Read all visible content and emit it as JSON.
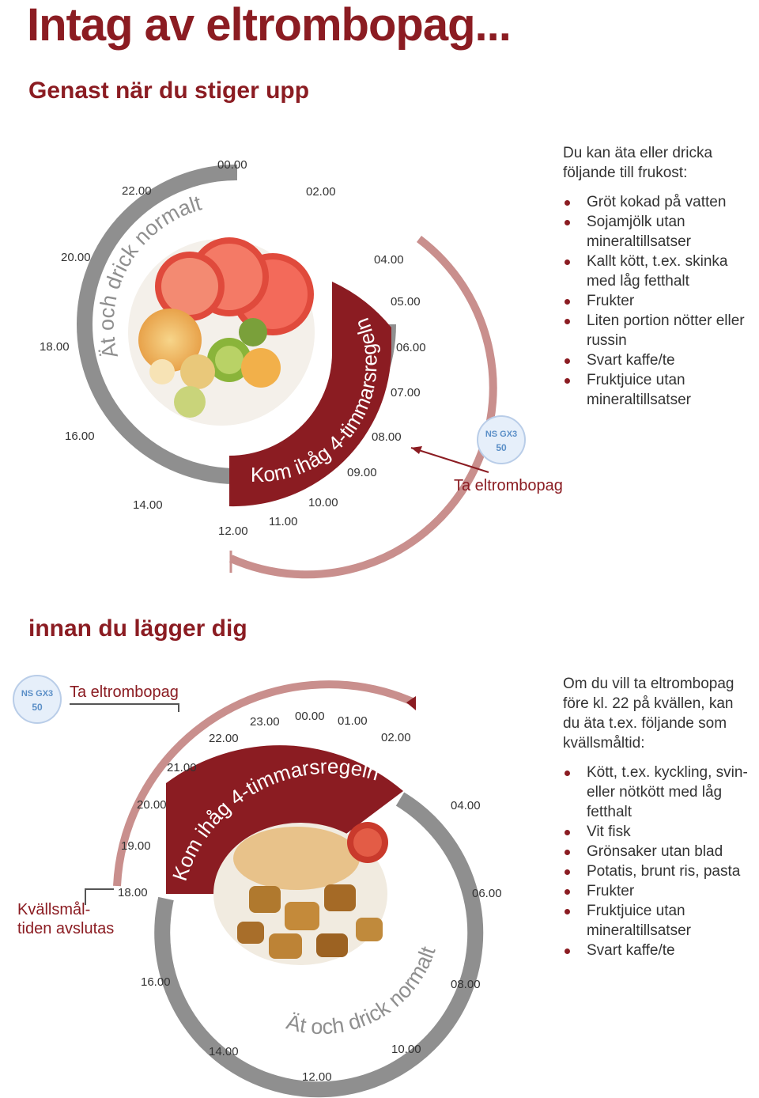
{
  "title": "Intag av eltrombopag...",
  "morning": {
    "heading": "Genast när du stiger upp",
    "eat_label": "Ät och drick normalt",
    "rule_label": "Kom ihåg 4-timmarsregeln",
    "take_label": "Ta eltrombopag",
    "pill": {
      "line1": "NS GX3",
      "line2": "50"
    },
    "times": [
      "00.00",
      "02.00",
      "04.00",
      "05.00",
      "06.00",
      "07.00",
      "08.00",
      "09.00",
      "10.00",
      "11.00",
      "12.00",
      "14.00",
      "16.00",
      "18.00",
      "20.00",
      "22.00"
    ],
    "info_intro": "Du kan äta eller dricka följande till frukost:",
    "info_items": [
      "Gröt kokad på vatten",
      "Sojamjölk utan mineraltillsatser",
      "Kallt kött, t.ex. skinka med låg fetthalt",
      "Frukter",
      "Liten portion nötter eller russin",
      "Svart kaffe/te",
      "Fruktjuice utan mineraltillsatser"
    ]
  },
  "evening": {
    "heading": "innan du lägger dig",
    "eat_label": "Ät och drick normalt",
    "rule_label": "Kom ihåg 4-timmarsregeln",
    "take_label": "Ta eltrombopag",
    "meal_end_line1": "Kvällsmål-",
    "meal_end_line2": "tiden avslutas",
    "pill": {
      "line1": "NS GX3",
      "line2": "50"
    },
    "times": [
      "23.00",
      "00.00",
      "01.00",
      "02.00",
      "22.00",
      "21.00",
      "20.00",
      "19.00",
      "18.00",
      "04.00",
      "06.00",
      "08.00",
      "10.00",
      "12.00",
      "14.00",
      "16.00"
    ],
    "info_intro": "Om du vill ta eltrombopag före kl. 22 på kvällen, kan du äta t.ex. följande som kvällsmåltid:",
    "info_items": [
      "Kött, t.ex. kyckling, svin- eller nötkött med låg fetthalt",
      "Vit fisk",
      "Grönsaker utan blad",
      "Potatis, brunt ris, pasta",
      "Frukter",
      "Fruktjuice utan mineraltillsatser",
      "Svart kaffe/te"
    ]
  },
  "colors": {
    "dark_red": "#8b1c22",
    "light_red": "#c98f8d",
    "grey": "#8f8f8f",
    "pill_blue": "#5b8fc7"
  }
}
